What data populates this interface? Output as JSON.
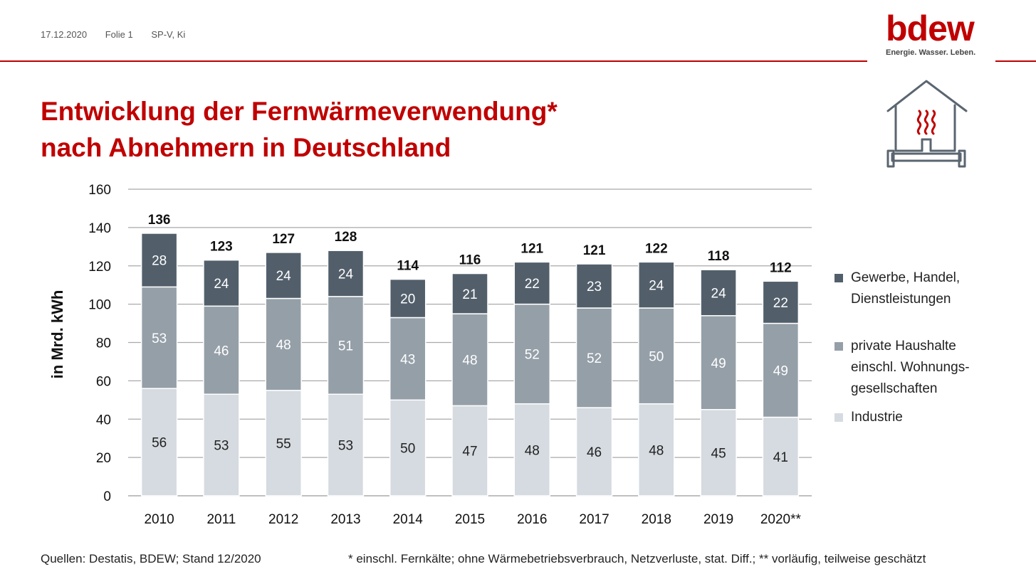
{
  "header": {
    "date": "17.12.2020",
    "slide": "Folie 1",
    "author": "SP-V, Ki"
  },
  "logo": {
    "word": "bdew",
    "tagline": "Energie. Wasser. Leben."
  },
  "title": {
    "line1": "Entwicklung der Fernwärmeverwendung*",
    "line2": "nach Abnehmern in Deutschland"
  },
  "icon": "house-heating-icon",
  "colors": {
    "accent": "#c00000",
    "gewerbe": "#525f6b",
    "haushalte": "#959fa8",
    "industrie": "#d5dbe0"
  },
  "footer": {
    "sources": "Quellen: Destatis, BDEW; Stand 12/2020",
    "note": "* einschl. Fernkälte; ohne Wärmebetriebsverbrauch, Netzverluste, stat. Diff.; ** vorläufig, teilweise geschätzt"
  },
  "chart_data": {
    "type": "bar",
    "stacked": true,
    "ylabel": "in Mrd. kWh",
    "ylim": [
      0,
      160
    ],
    "yticks": [
      0,
      20,
      40,
      60,
      80,
      100,
      120,
      140,
      160
    ],
    "grid": true,
    "legend_position": "right",
    "categories": [
      "2010",
      "2011",
      "2012",
      "2013",
      "2014",
      "2015",
      "2016",
      "2017",
      "2018",
      "2019",
      "2020**"
    ],
    "totals": [
      136,
      123,
      127,
      128,
      114,
      116,
      121,
      121,
      122,
      118,
      112
    ],
    "series": [
      {
        "name": "Industrie",
        "values": [
          56,
          53,
          55,
          53,
          50,
          47,
          48,
          46,
          48,
          45,
          41
        ]
      },
      {
        "name": "private Haushalte\neinschl. Wohnungs-\ngesellschaften",
        "values": [
          53,
          46,
          48,
          51,
          43,
          48,
          52,
          52,
          50,
          49,
          49
        ]
      },
      {
        "name": "Gewerbe, Handel,\nDienstleistungen",
        "values": [
          28,
          24,
          24,
          24,
          20,
          21,
          22,
          23,
          24,
          24,
          22
        ]
      }
    ]
  }
}
